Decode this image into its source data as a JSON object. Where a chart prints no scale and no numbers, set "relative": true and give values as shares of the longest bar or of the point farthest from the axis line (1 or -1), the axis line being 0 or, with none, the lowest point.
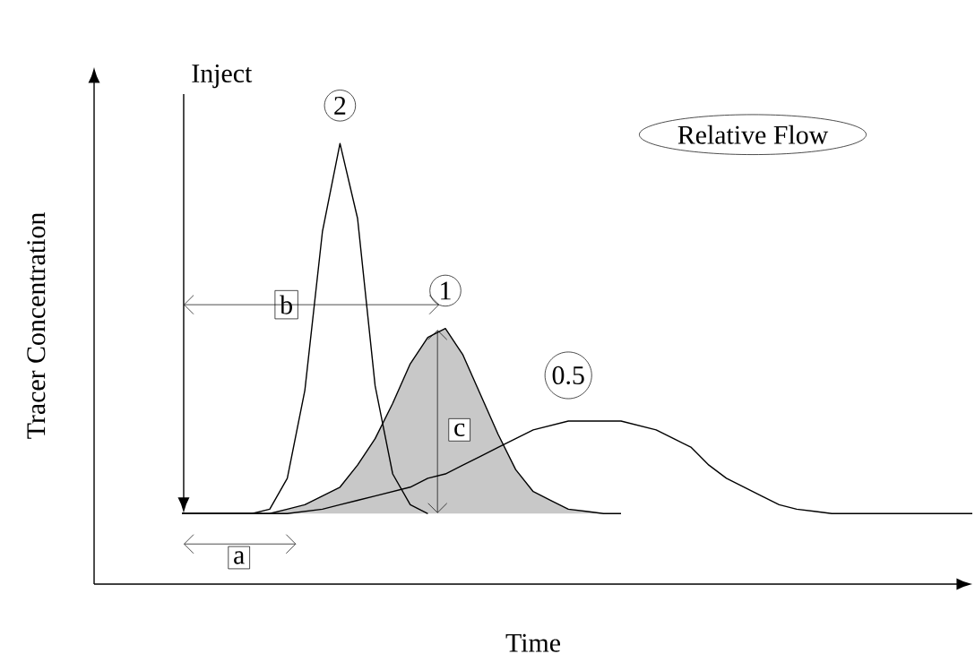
{
  "chart_data": {
    "type": "line",
    "relative": true,
    "xlabel": "Time",
    "ylabel": "Tracer Concentration",
    "legend_title": "Relative Flow",
    "legend": "top left",
    "annotations": [
      "Inject",
      "a",
      "b",
      "c"
    ],
    "categories": [
      null,
      null,
      null,
      null,
      null,
      null,
      null,
      null,
      null,
      null,
      null,
      null,
      null,
      null,
      null,
      null,
      null,
      null,
      null,
      null,
      null,
      null,
      null,
      null,
      null,
      null,
      null,
      null,
      null,
      null,
      null,
      null,
      null,
      null,
      null,
      null,
      null,
      null,
      null,
      null,
      null,
      null,
      null,
      null,
      null,
      null
    ],
    "series": [
      {
        "name": "2",
        "color": "#000000",
        "values": [
          0.16,
          0.16,
          0.16,
          0.16,
          0.16,
          0.17,
          0.24,
          0.44,
          0.8,
          1.0,
          0.83,
          0.45,
          0.25,
          0.18,
          0.16,
          null,
          null,
          null,
          null,
          null,
          null,
          null,
          null,
          null,
          null,
          null,
          null,
          null,
          null,
          null,
          null,
          null,
          null,
          null,
          null,
          null,
          null,
          null,
          null,
          null,
          null,
          null,
          null,
          null,
          null,
          null
        ]
      },
      {
        "name": "1",
        "type": "area",
        "color": "#c8c8c8",
        "values": [
          0.16,
          0.16,
          0.16,
          0.16,
          0.16,
          0.16,
          0.17,
          0.18,
          0.2,
          0.22,
          0.27,
          0.33,
          0.41,
          0.5,
          0.56,
          0.58,
          0.52,
          0.43,
          0.34,
          0.26,
          0.21,
          0.19,
          0.17,
          0.165,
          0.16,
          0.16,
          null,
          null,
          null,
          null,
          null,
          null,
          null,
          null,
          null,
          null,
          null,
          null,
          null,
          null,
          null,
          null,
          null,
          null,
          null,
          null
        ]
      },
      {
        "name": "0.5",
        "color": "#000000",
        "values": [
          0.16,
          0.16,
          0.16,
          0.16,
          0.16,
          0.16,
          0.16,
          0.165,
          0.17,
          0.18,
          0.19,
          0.2,
          0.21,
          0.22,
          0.24,
          0.25,
          0.27,
          0.29,
          0.31,
          0.33,
          0.35,
          0.36,
          0.37,
          0.37,
          0.37,
          0.37,
          0.36,
          0.35,
          0.33,
          0.31,
          0.27,
          0.24,
          0.22,
          0.2,
          0.18,
          0.17,
          0.165,
          0.16,
          0.16,
          0.16,
          0.16,
          0.16,
          0.16,
          0.16,
          0.16,
          0.16
        ]
      }
    ]
  }
}
